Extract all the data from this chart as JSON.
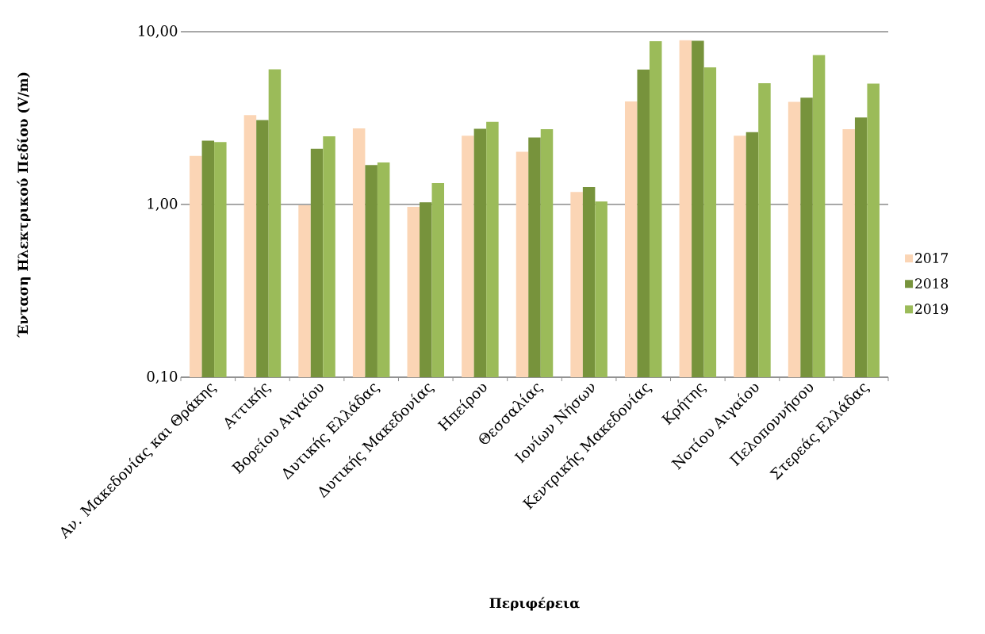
{
  "chart_data": {
    "type": "bar",
    "xlabel": "Περιφέρεια",
    "ylabel": "Ένταση Ηλεκτρικού Πεδίου (V/m)",
    "categories": [
      "Αν. Μακεδονίας και Θράκης",
      "Αττικής",
      "Βορείου Αιγαίου",
      "Δυτικής Ελλάδας",
      "Δυτικής Μακεδονίας",
      "Ηπείρου",
      "Θεσσαλίας",
      "Ιονίων Νήσων",
      "Κεντρικής Μακεδονίας",
      "Κρήτης",
      "Νοτίου Αιγαίου",
      "Πελοποννήσου",
      "Στερεάς Ελλάδας"
    ],
    "series": [
      {
        "name": "2017",
        "color": "#fbd5b5",
        "values": [
          1.91,
          3.29,
          0.99,
          2.76,
          0.97,
          2.5,
          2.02,
          1.18,
          3.95,
          8.93,
          2.5,
          3.93,
          2.73
        ]
      },
      {
        "name": "2018",
        "color": "#77933c",
        "values": [
          2.34,
          3.08,
          2.1,
          1.69,
          1.03,
          2.74,
          2.44,
          1.26,
          6.04,
          8.87,
          2.62,
          4.15,
          3.19
        ]
      },
      {
        "name": "2019",
        "color": "#9bbb59",
        "values": [
          2.3,
          6.06,
          2.48,
          1.75,
          1.33,
          3.01,
          2.73,
          1.04,
          8.81,
          6.21,
          5.03,
          7.33,
          5.01
        ]
      }
    ],
    "log": true,
    "ylim": [
      0.1,
      10
    ],
    "yticks": [
      {
        "value": 0.1,
        "label": "0,10"
      },
      {
        "value": 1,
        "label": "1,00"
      },
      {
        "value": 10,
        "label": "10,00"
      }
    ],
    "grid": "y",
    "legend": "right"
  }
}
